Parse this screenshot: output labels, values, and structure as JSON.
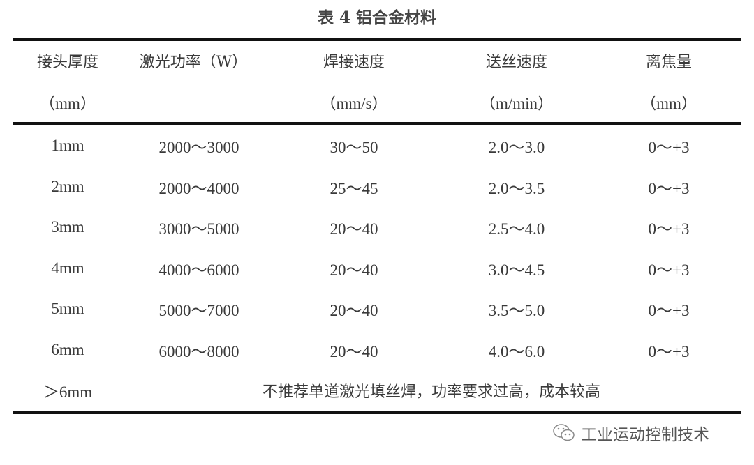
{
  "title": "表 4  铝合金材料",
  "header": [
    {
      "label": "接头厚度",
      "unit": "（mm）"
    },
    {
      "label": "激光功率（W）",
      "unit": ""
    },
    {
      "label": "焊接速度",
      "unit": "（mm/s）"
    },
    {
      "label": "送丝速度",
      "unit": "（m/min）"
    },
    {
      "label": "离焦量",
      "unit": "（mm）"
    }
  ],
  "rows": [
    [
      "1mm",
      "2000～3000",
      "30～50",
      "2.0～3.0",
      "0～+3"
    ],
    [
      "2mm",
      "2000～4000",
      "25～45",
      "2.0～3.5",
      "0～+3"
    ],
    [
      "3mm",
      "3000～5000",
      "20～40",
      "2.5～4.0",
      "0～+3"
    ],
    [
      "4mm",
      "4000～6000",
      "20～40",
      "3.0～4.5",
      "0～+3"
    ],
    [
      "5mm",
      "5000～7000",
      "20～40",
      "3.5～5.0",
      "0～+3"
    ],
    [
      "6mm",
      "6000～8000",
      "20～40",
      "4.0～6.0",
      "0～+3"
    ]
  ],
  "last_row": {
    "thickness": "＞6mm",
    "note": "不推荐单道激光填丝焊，功率要求过高，成本较高"
  },
  "watermark": {
    "icon": "wechat-icon",
    "text": "工业运动控制技术"
  }
}
